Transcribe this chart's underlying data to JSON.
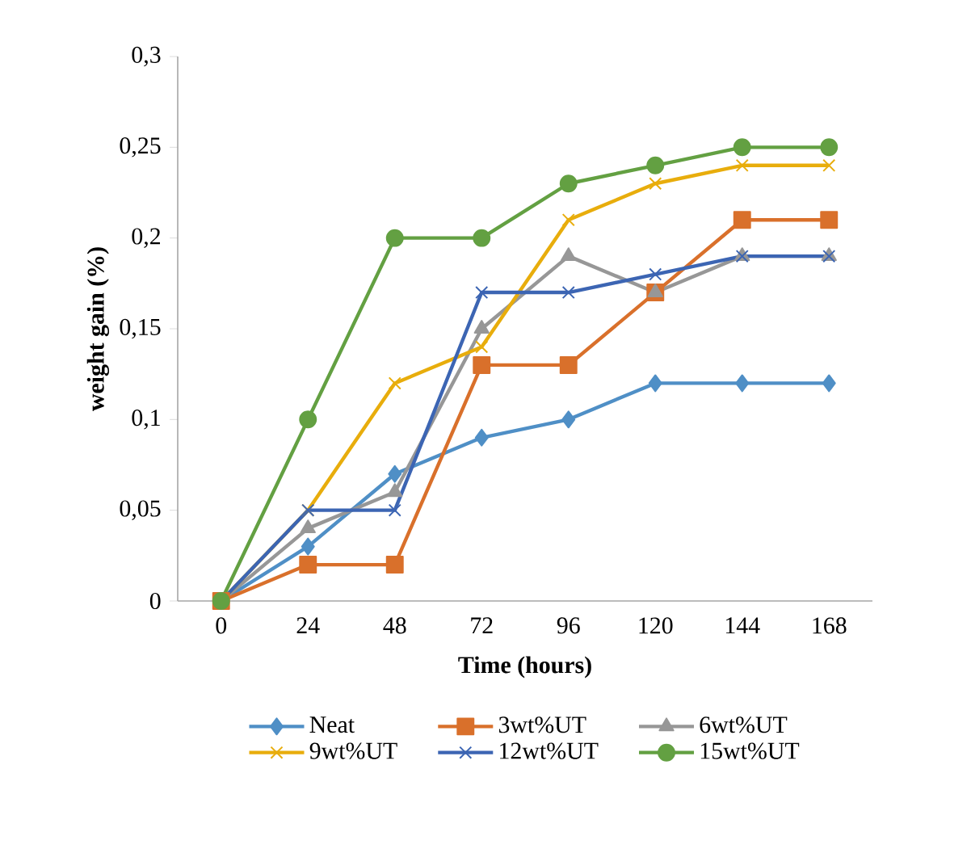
{
  "chart_data": {
    "type": "line",
    "xlabel": "Time (hours)",
    "ylabel": "weight gain (%)",
    "categories": [
      "0",
      "24",
      "48",
      "72",
      "96",
      "120",
      "144",
      "168"
    ],
    "ylim": [
      0,
      0.3
    ],
    "yticks": [
      {
        "value": 0,
        "label": "0"
      },
      {
        "value": 0.05,
        "label": "0,05"
      },
      {
        "value": 0.1,
        "label": "0,1"
      },
      {
        "value": 0.15,
        "label": "0,15"
      },
      {
        "value": 0.2,
        "label": "0,2"
      },
      {
        "value": 0.25,
        "label": "0,25"
      },
      {
        "value": 0.3,
        "label": "0,3"
      }
    ],
    "grid": false,
    "legend": "bottom",
    "series": [
      {
        "name": "Neat",
        "color": "#4f8fc6",
        "marker": "diamond",
        "values": [
          0,
          0.03,
          0.07,
          0.09,
          0.1,
          0.12,
          0.12,
          0.12
        ]
      },
      {
        "name": "3wt%UT",
        "color": "#d9702b",
        "marker": "square",
        "values": [
          0,
          0.02,
          0.02,
          0.13,
          0.13,
          0.17,
          0.21,
          0.21
        ]
      },
      {
        "name": "6wt%UT",
        "color": "#979797",
        "marker": "triangle",
        "values": [
          0,
          0.04,
          0.06,
          0.15,
          0.19,
          0.17,
          0.19,
          0.19
        ]
      },
      {
        "name": "9wt%UT",
        "color": "#e8ad0c",
        "marker": "cross",
        "values": [
          0,
          0.05,
          0.12,
          0.14,
          0.21,
          0.23,
          0.24,
          0.24
        ]
      },
      {
        "name": "12wt%UT",
        "color": "#3c65b3",
        "marker": "cross",
        "values": [
          0,
          0.05,
          0.05,
          0.17,
          0.17,
          0.18,
          0.19,
          0.19
        ]
      },
      {
        "name": "15wt%UT",
        "color": "#63a042",
        "marker": "circle",
        "values": [
          0,
          0.1,
          0.2,
          0.2,
          0.23,
          0.24,
          0.25,
          0.25
        ]
      }
    ]
  }
}
